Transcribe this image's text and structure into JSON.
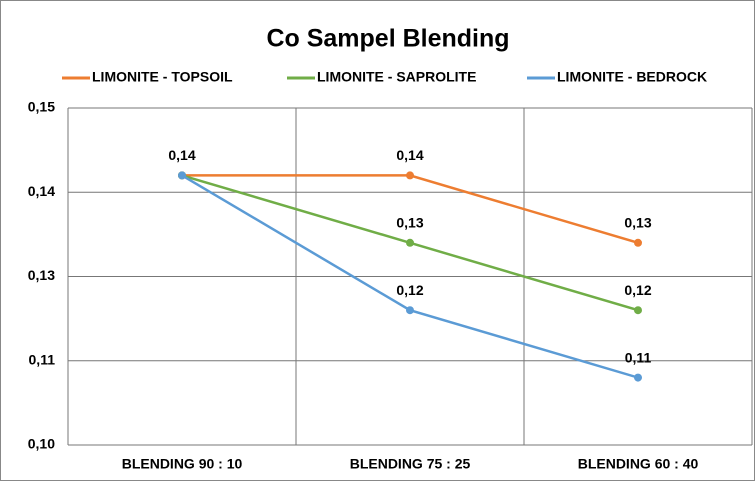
{
  "chart_data": {
    "type": "line",
    "title": "Co Sampel Blending",
    "categories": [
      "BLENDING 90 : 10",
      "BLENDING 75 : 25",
      "BLENDING 60 : 40"
    ],
    "series": [
      {
        "name": "LIMONITE - TOPSOIL",
        "color": "#ed7d31",
        "values": [
          0.14,
          0.14,
          0.13
        ],
        "value_labels": [
          "0,14",
          "0,14",
          "0,13"
        ]
      },
      {
        "name": "LIMONITE - SAPROLITE",
        "color": "#70ad47",
        "values": [
          0.14,
          0.13,
          0.12
        ],
        "value_labels": [
          null,
          "0,13",
          "0,12"
        ]
      },
      {
        "name": "LIMONITE - BEDROCK",
        "color": "#5b9bd5",
        "values": [
          0.14,
          0.12,
          0.11
        ],
        "value_labels": [
          null,
          "0,12",
          "0,11"
        ]
      }
    ],
    "ylim": [
      0.1,
      0.15
    ],
    "yticks": [
      {
        "value": 0.1,
        "label": "0,10"
      },
      {
        "value": 0.1125,
        "label": "0,11"
      },
      {
        "value": 0.125,
        "label": "0,13"
      },
      {
        "value": 0.1375,
        "label": "0,14"
      },
      {
        "value": 0.15,
        "label": "0,15"
      }
    ],
    "grid": true,
    "legend": "top"
  }
}
